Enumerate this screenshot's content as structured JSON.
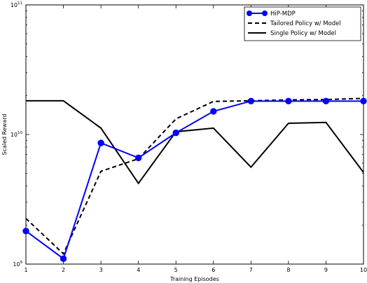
{
  "chart_data": {
    "type": "line",
    "xlabel": "Training Episodes",
    "ylabel": "Scaled Reward",
    "x": [
      1,
      2,
      3,
      4,
      5,
      6,
      7,
      8,
      9,
      10
    ],
    "xlim": [
      1,
      10
    ],
    "ylim": [
      1000000000,
      100000000000
    ],
    "yscale": "log",
    "y_ticks": [
      {
        "value": 1000000000,
        "base": "10",
        "exp": "9"
      },
      {
        "value": 10000000000,
        "base": "10",
        "exp": "10"
      },
      {
        "value": 100000000000,
        "base": "10",
        "exp": "11"
      }
    ],
    "grid": false,
    "legend_position": "top-right",
    "series": [
      {
        "name": "HiP-MDP",
        "color": "#0000ff",
        "style": "solid-marker",
        "values": [
          1800000000.0,
          1100000000.0,
          8600000000.0,
          6600000000.0,
          10300000000.0,
          15100000000.0,
          18100000000.0,
          18100000000.0,
          18100000000.0,
          18100000000.0
        ]
      },
      {
        "name": "Tailored Policy w/ Model",
        "color": "#000000",
        "style": "dashed",
        "values": [
          2250000000.0,
          1200000000.0,
          5200000000.0,
          6500000000.0,
          13200000000.0,
          18000000000.0,
          18200000000.0,
          18500000000.0,
          18600000000.0,
          19000000000.0
        ]
      },
      {
        "name": "Single Policy w/ Model",
        "color": "#000000",
        "style": "solid",
        "values": [
          18200000000.0,
          18200000000.0,
          11200000000.0,
          4200000000.0,
          10500000000.0,
          11200000000.0,
          5600000000.0,
          12200000000.0,
          12400000000.0,
          5100000000.0
        ]
      }
    ]
  }
}
